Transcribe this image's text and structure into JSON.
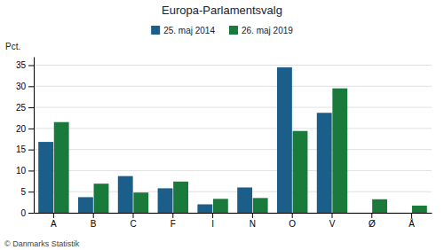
{
  "chart_data": {
    "type": "bar",
    "title": "Europa-Parlamentsvalg",
    "categories": [
      "A",
      "B",
      "C",
      "F",
      "I",
      "N",
      "O",
      "V",
      "Ø",
      "Å"
    ],
    "series": [
      {
        "name": "25. maj 2014",
        "color": "#1b5e8a",
        "values": [
          16.8,
          3.7,
          8.7,
          5.8,
          2.0,
          6.0,
          34.5,
          23.7,
          0.0,
          0.0
        ]
      },
      {
        "name": "26. maj 2019",
        "color": "#1a7a3c",
        "values": [
          21.5,
          6.9,
          4.8,
          7.4,
          3.3,
          3.5,
          19.4,
          29.5,
          3.2,
          1.7
        ]
      }
    ],
    "ylabel": "Pct.",
    "ylim": [
      0,
      37
    ],
    "yticks": [
      0,
      5,
      10,
      15,
      20,
      25,
      30,
      35
    ],
    "grid": true,
    "legend": "top",
    "footer": "© Danmarks Statistik"
  }
}
